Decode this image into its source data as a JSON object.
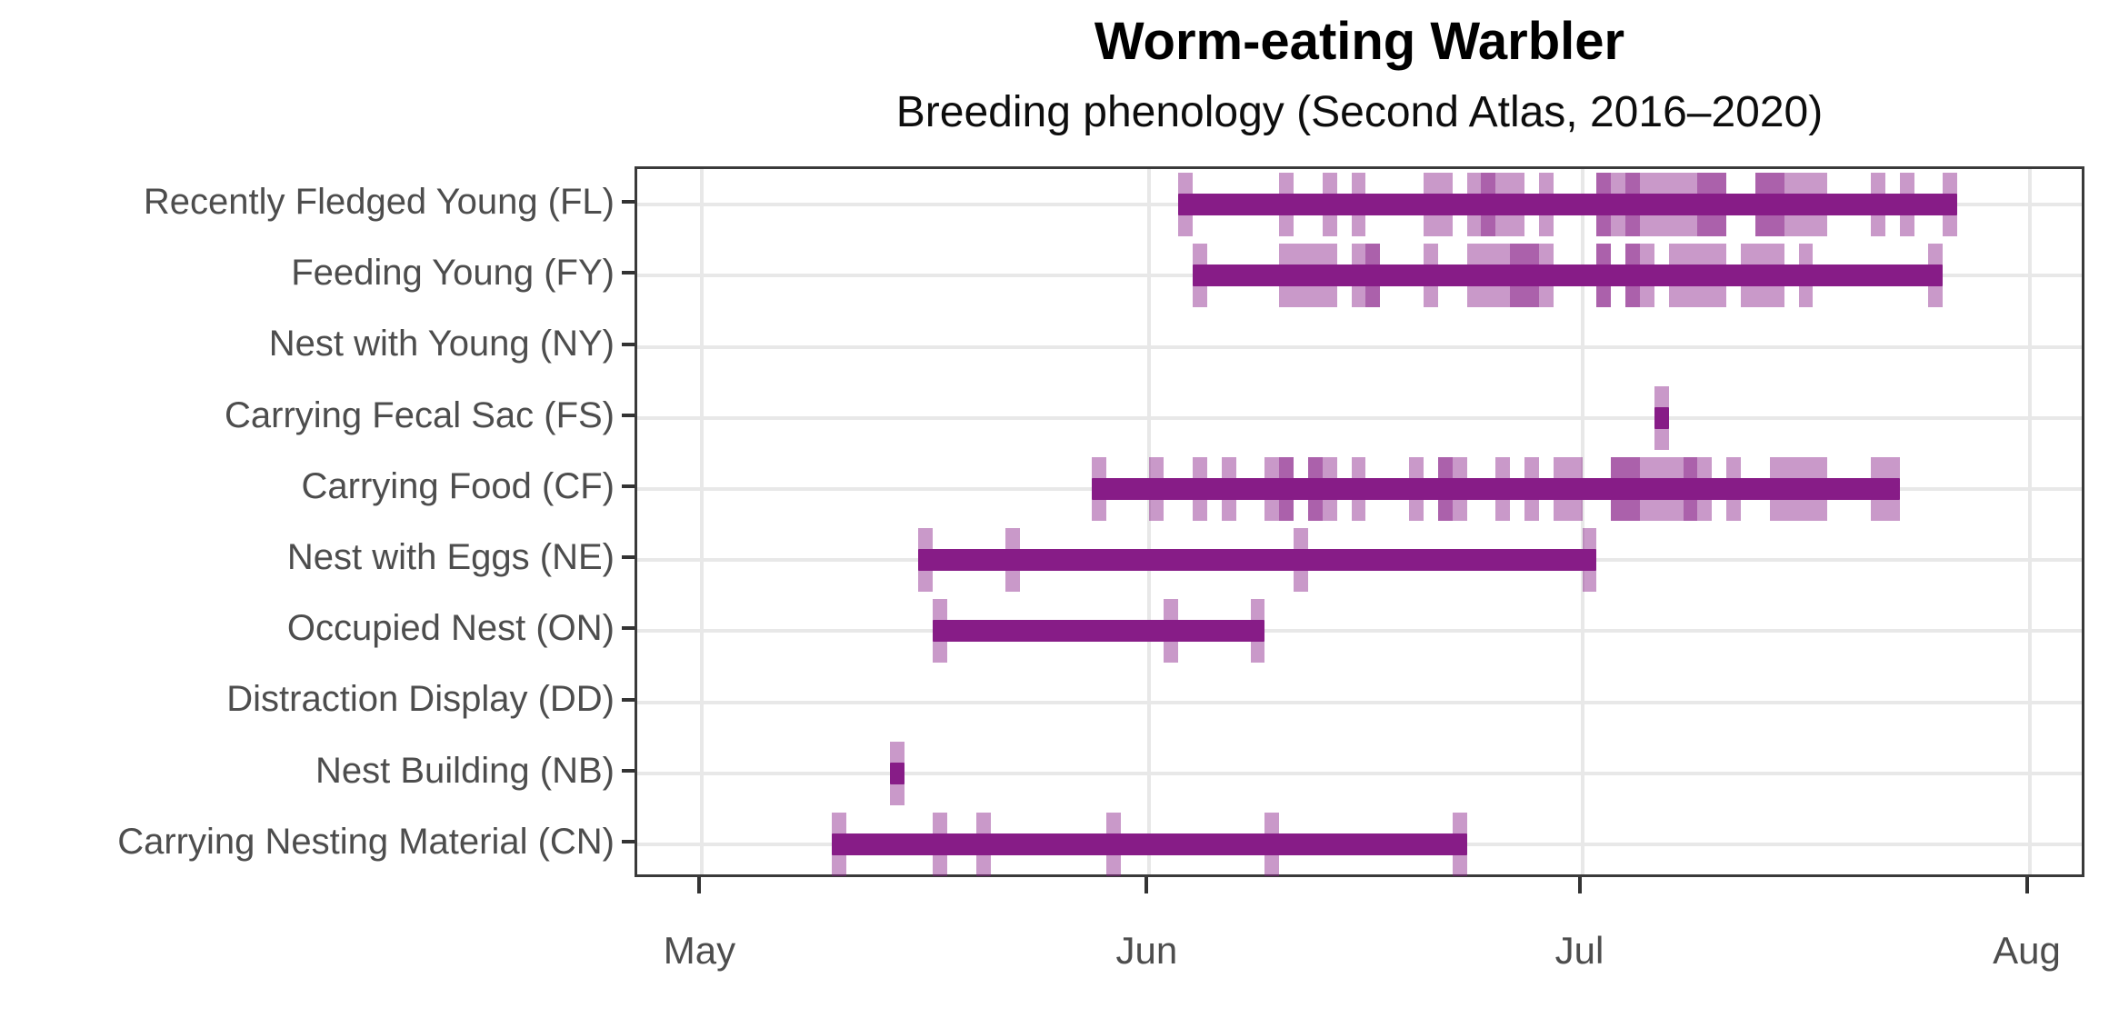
{
  "chart_data": {
    "type": "bar",
    "subtype": "horizontal-range-timeline (breeding phenology, ggplot style)",
    "title": "Worm-eating Warbler",
    "subtitle": "Breeding phenology (Second Atlas, 2016–2020)",
    "grid": "major-only",
    "legend_position": "none",
    "x_axis": {
      "label": "",
      "tick_labels": [
        "May",
        "Jun",
        "Jul",
        "Aug"
      ],
      "tick_days": [
        0,
        31,
        61,
        92
      ],
      "domain_days": [
        -4.5,
        96
      ],
      "day_zero": "May 1",
      "note": "day values are days since May 1; an observation n occupies the 1-day bin [n, n+1]"
    },
    "categories": [
      "Recently Fledged Young (FL)",
      "Feeding Young (FY)",
      "Nest with Young (NY)",
      "Carrying Fecal Sac (FS)",
      "Carrying Food (CF)",
      "Nest with Eggs (NE)",
      "Occupied Nest (ON)",
      "Distraction Display (DD)",
      "Nest Building (NB)",
      "Carrying Nesting Material (CN)"
    ],
    "series": [
      {
        "code": "FL",
        "label": "Recently Fledged Young (FL)",
        "bar_days": [
          33,
          87
        ],
        "range_label": "Jun 3 – Jul 26",
        "observation_days": [
          33,
          40,
          43,
          45,
          50,
          51,
          53,
          54,
          54,
          55,
          56,
          58,
          62,
          62,
          63,
          64,
          64,
          65,
          66,
          67,
          68,
          69,
          69,
          70,
          70,
          73,
          73,
          74,
          74,
          75,
          76,
          77,
          81,
          83,
          86
        ]
      },
      {
        "code": "FY",
        "label": "Feeding Young (FY)",
        "bar_days": [
          34,
          86
        ],
        "range_label": "Jun 4 – Jul 25",
        "observation_days": [
          34,
          40,
          41,
          42,
          43,
          45,
          46,
          46,
          50,
          53,
          54,
          55,
          56,
          56,
          57,
          57,
          58,
          62,
          62,
          64,
          64,
          65,
          67,
          68,
          69,
          70,
          72,
          73,
          74,
          76,
          85
        ]
      },
      {
        "code": "NY",
        "label": "Nest with Young (NY)",
        "bar_days": null,
        "range_label": "",
        "observation_days": []
      },
      {
        "code": "FS",
        "label": "Carrying Fecal Sac (FS)",
        "bar_days": [
          66,
          67
        ],
        "range_label": "Jul 6",
        "observation_days": [
          66
        ]
      },
      {
        "code": "CF",
        "label": "Carrying Food (CF)",
        "bar_days": [
          27,
          83
        ],
        "range_label": "May 28 – Jul 22",
        "observation_days": [
          27,
          31,
          34,
          36,
          39,
          40,
          40,
          42,
          42,
          43,
          45,
          49,
          51,
          51,
          52,
          55,
          57,
          59,
          60,
          63,
          63,
          64,
          64,
          65,
          66,
          67,
          68,
          68,
          69,
          71,
          74,
          75,
          76,
          77,
          81,
          82
        ]
      },
      {
        "code": "NE",
        "label": "Nest with Eggs (NE)",
        "bar_days": [
          15,
          62
        ],
        "range_label": "May 16 – Jul 1",
        "observation_days": [
          15,
          21,
          41,
          61
        ]
      },
      {
        "code": "ON",
        "label": "Occupied Nest (ON)",
        "bar_days": [
          16,
          39
        ],
        "range_label": "May 17 – Jun 8",
        "observation_days": [
          16,
          32,
          38
        ]
      },
      {
        "code": "DD",
        "label": "Distraction Display (DD)",
        "bar_days": null,
        "range_label": "",
        "observation_days": []
      },
      {
        "code": "NB",
        "label": "Nest Building (NB)",
        "bar_days": [
          13,
          14
        ],
        "range_label": "May 14",
        "observation_days": [
          13
        ]
      },
      {
        "code": "CN",
        "label": "Carrying Nesting Material (CN)",
        "bar_days": [
          9,
          53
        ],
        "range_label": "May 10 – Jun 22",
        "observation_days": [
          9,
          16,
          19,
          28,
          39,
          52
        ]
      }
    ],
    "colors": {
      "bar": "#871c87",
      "observation_tick": "rgba(135,28,135,0.45)",
      "gridline": "#e8e8e8",
      "panel_border": "#3a3a3a",
      "axis_tick": "#333333",
      "axis_text": "#4d4d4d",
      "title_text": "#000000",
      "background": "#ffffff"
    }
  }
}
